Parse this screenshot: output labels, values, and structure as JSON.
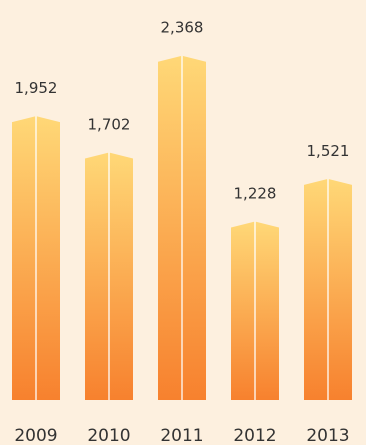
{
  "chart_data": {
    "type": "bar",
    "categories": [
      "2009",
      "2010",
      "2011",
      "2012",
      "2013"
    ],
    "values": [
      1952,
      1702,
      2368,
      1228,
      1521
    ],
    "value_labels": [
      "1,952",
      "1,702",
      "2,368",
      "1,228",
      "1,521"
    ],
    "title": "",
    "xlabel": "",
    "ylabel": "",
    "ylim": [
      0,
      2368
    ],
    "grid": false,
    "legend": "none",
    "colors": {
      "background": "#fdf0df",
      "bar_top": "#ffd877",
      "bar_bottom": "#f7812e",
      "text": "#333333"
    }
  }
}
